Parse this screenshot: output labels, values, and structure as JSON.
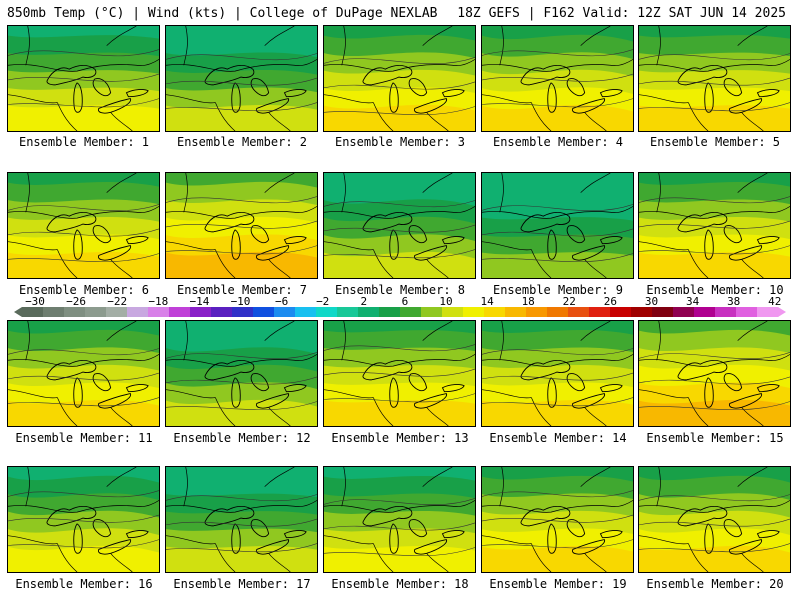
{
  "header": {
    "left": "850mb Temp (°C) | Wind (kts) | College of DuPage NEXLAB",
    "right": "18Z GEFS | F162 Valid: 12Z SAT JUN 14 2025"
  },
  "members": [
    {
      "label": "Ensemble Member: 1",
      "tone": 0.42
    },
    {
      "label": "Ensemble Member: 2",
      "tone": 0.25
    },
    {
      "label": "Ensemble Member: 3",
      "tone": 0.45
    },
    {
      "label": "Ensemble Member: 4",
      "tone": 0.55
    },
    {
      "label": "Ensemble Member: 5",
      "tone": 0.45
    },
    {
      "label": "Ensemble Member: 6",
      "tone": 0.55
    },
    {
      "label": "Ensemble Member: 7",
      "tone": 0.6
    },
    {
      "label": "Ensemble Member: 8",
      "tone": 0.2
    },
    {
      "label": "Ensemble Member: 9",
      "tone": 0.15
    },
    {
      "label": "Ensemble Member: 10",
      "tone": 0.45
    },
    {
      "label": "Ensemble Member: 11",
      "tone": 0.48
    },
    {
      "label": "Ensemble Member: 12",
      "tone": 0.3
    },
    {
      "label": "Ensemble Member: 13",
      "tone": 0.45
    },
    {
      "label": "Ensemble Member: 14",
      "tone": 0.5
    },
    {
      "label": "Ensemble Member: 15",
      "tone": 0.62
    },
    {
      "label": "Ensemble Member: 16",
      "tone": 0.38
    },
    {
      "label": "Ensemble Member: 17",
      "tone": 0.3
    },
    {
      "label": "Ensemble Member: 18",
      "tone": 0.35
    },
    {
      "label": "Ensemble Member: 19",
      "tone": 0.45
    },
    {
      "label": "Ensemble Member: 20",
      "tone": 0.55
    }
  ],
  "colorbar": {
    "ticks": [
      "−30",
      "−26",
      "−22",
      "−18",
      "−14",
      "−10",
      "−6",
      "−2",
      "2",
      "6",
      "10",
      "14",
      "18",
      "22",
      "26",
      "30",
      "34",
      "38",
      "42"
    ],
    "colors": [
      "#5a6b5c",
      "#6e7e70",
      "#7f8f81",
      "#8c9b8e",
      "#a3aea5",
      "#c8a8e0",
      "#d880e8",
      "#c040d8",
      "#8a20c8",
      "#5a20c0",
      "#3030c8",
      "#1050e0",
      "#1c8cf0",
      "#18c0f0",
      "#10d8c8",
      "#18c898",
      "#10b070",
      "#18a048",
      "#40a830",
      "#90c820",
      "#d0e010",
      "#f0f000",
      "#f8d800",
      "#f8b800",
      "#f89800",
      "#f07800",
      "#e85010",
      "#e02010",
      "#c80000",
      "#a00000",
      "#800010",
      "#900050",
      "#b00090",
      "#c830c0",
      "#e060e0",
      "#f098f0"
    ]
  },
  "palette": [
    "#10b070",
    "#18a048",
    "#40a830",
    "#90c820",
    "#d0e010",
    "#f0f000",
    "#f8d800",
    "#f8b800",
    "#f89800"
  ]
}
